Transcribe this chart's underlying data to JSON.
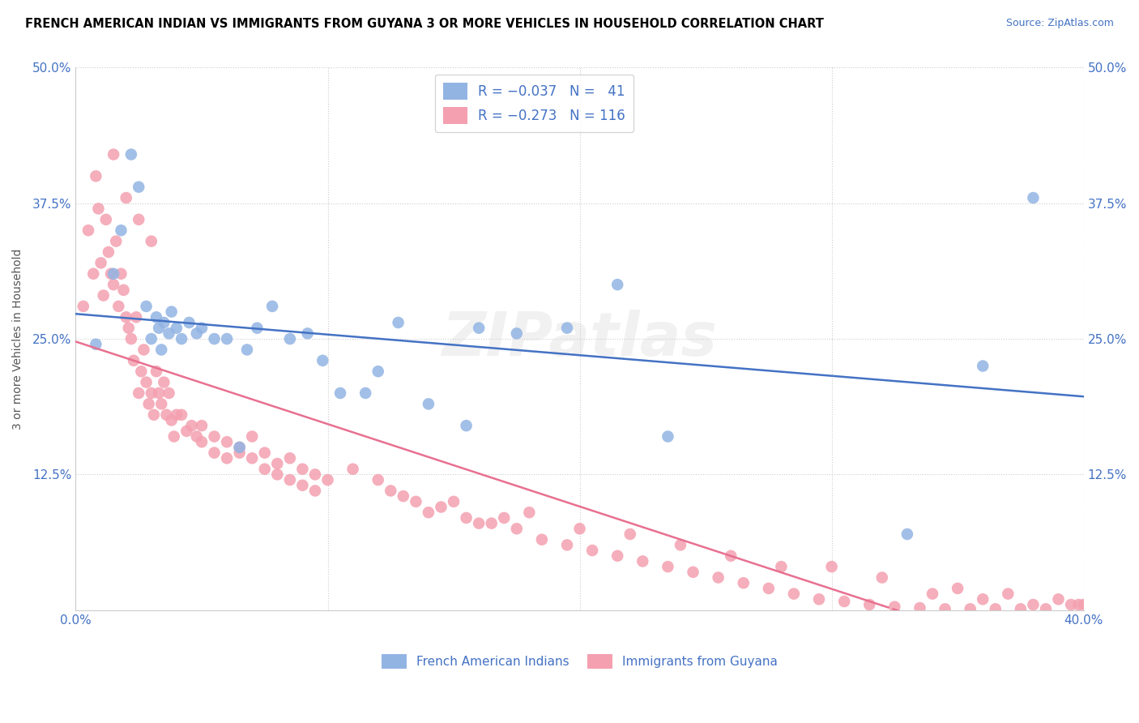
{
  "title": "FRENCH AMERICAN INDIAN VS IMMIGRANTS FROM GUYANA 3 OR MORE VEHICLES IN HOUSEHOLD CORRELATION CHART",
  "source": "Source: ZipAtlas.com",
  "ylabel": "3 or more Vehicles in Household",
  "xlim": [
    0.0,
    0.4
  ],
  "ylim": [
    0.0,
    0.5
  ],
  "color_blue": "#92B4E3",
  "color_pink": "#F4A0B0",
  "line_color_blue": "#4472C4",
  "line_color_pink": "#E87090",
  "watermark": "ZIPatlas",
  "blue_scatter_x": [
    0.008,
    0.015,
    0.018,
    0.022,
    0.025,
    0.028,
    0.03,
    0.032,
    0.033,
    0.034,
    0.035,
    0.037,
    0.038,
    0.04,
    0.042,
    0.045,
    0.048,
    0.05,
    0.055,
    0.06,
    0.065,
    0.068,
    0.072,
    0.078,
    0.085,
    0.092,
    0.098,
    0.105,
    0.115,
    0.12,
    0.128,
    0.14,
    0.155,
    0.16,
    0.175,
    0.195,
    0.215,
    0.235,
    0.33,
    0.36,
    0.38
  ],
  "blue_scatter_y": [
    0.245,
    0.31,
    0.35,
    0.42,
    0.39,
    0.28,
    0.25,
    0.27,
    0.26,
    0.24,
    0.265,
    0.255,
    0.275,
    0.26,
    0.25,
    0.265,
    0.255,
    0.26,
    0.25,
    0.25,
    0.15,
    0.24,
    0.26,
    0.28,
    0.25,
    0.255,
    0.23,
    0.2,
    0.2,
    0.22,
    0.265,
    0.19,
    0.17,
    0.26,
    0.255,
    0.26,
    0.3,
    0.16,
    0.07,
    0.225,
    0.38
  ],
  "pink_scatter_x": [
    0.003,
    0.005,
    0.007,
    0.008,
    0.009,
    0.01,
    0.011,
    0.012,
    0.013,
    0.014,
    0.015,
    0.016,
    0.017,
    0.018,
    0.019,
    0.02,
    0.021,
    0.022,
    0.023,
    0.024,
    0.025,
    0.026,
    0.027,
    0.028,
    0.029,
    0.03,
    0.031,
    0.032,
    0.033,
    0.034,
    0.035,
    0.036,
    0.037,
    0.038,
    0.039,
    0.04,
    0.042,
    0.044,
    0.046,
    0.048,
    0.05,
    0.055,
    0.06,
    0.065,
    0.07,
    0.075,
    0.08,
    0.085,
    0.09,
    0.095,
    0.1,
    0.11,
    0.12,
    0.13,
    0.14,
    0.15,
    0.16,
    0.17,
    0.18,
    0.2,
    0.22,
    0.24,
    0.26,
    0.28,
    0.3,
    0.32,
    0.34,
    0.35,
    0.36,
    0.37,
    0.38,
    0.39,
    0.395,
    0.398,
    0.4,
    0.125,
    0.135,
    0.145,
    0.155,
    0.165,
    0.175,
    0.185,
    0.195,
    0.205,
    0.215,
    0.225,
    0.235,
    0.245,
    0.255,
    0.265,
    0.275,
    0.285,
    0.295,
    0.305,
    0.315,
    0.325,
    0.335,
    0.345,
    0.355,
    0.365,
    0.375,
    0.385,
    0.015,
    0.02,
    0.025,
    0.03,
    0.05,
    0.055,
    0.06,
    0.065,
    0.07,
    0.075,
    0.08,
    0.085,
    0.09,
    0.095
  ],
  "pink_scatter_y": [
    0.28,
    0.35,
    0.31,
    0.4,
    0.37,
    0.32,
    0.29,
    0.36,
    0.33,
    0.31,
    0.3,
    0.34,
    0.28,
    0.31,
    0.295,
    0.27,
    0.26,
    0.25,
    0.23,
    0.27,
    0.2,
    0.22,
    0.24,
    0.21,
    0.19,
    0.2,
    0.18,
    0.22,
    0.2,
    0.19,
    0.21,
    0.18,
    0.2,
    0.175,
    0.16,
    0.18,
    0.18,
    0.165,
    0.17,
    0.16,
    0.155,
    0.145,
    0.14,
    0.15,
    0.16,
    0.145,
    0.135,
    0.14,
    0.13,
    0.125,
    0.12,
    0.13,
    0.12,
    0.105,
    0.09,
    0.1,
    0.08,
    0.085,
    0.09,
    0.075,
    0.07,
    0.06,
    0.05,
    0.04,
    0.04,
    0.03,
    0.015,
    0.02,
    0.01,
    0.015,
    0.005,
    0.01,
    0.005,
    0.005,
    0.005,
    0.11,
    0.1,
    0.095,
    0.085,
    0.08,
    0.075,
    0.065,
    0.06,
    0.055,
    0.05,
    0.045,
    0.04,
    0.035,
    0.03,
    0.025,
    0.02,
    0.015,
    0.01,
    0.008,
    0.005,
    0.003,
    0.002,
    0.001,
    0.001,
    0.001,
    0.001,
    0.001,
    0.42,
    0.38,
    0.36,
    0.34,
    0.17,
    0.16,
    0.155,
    0.145,
    0.14,
    0.13,
    0.125,
    0.12,
    0.115,
    0.11
  ]
}
